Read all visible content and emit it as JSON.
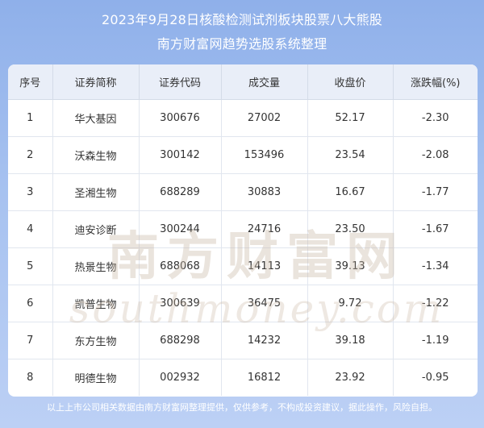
{
  "header": {
    "title_line1": "2023年9月28日核酸检测试剂板块股票八大熊股",
    "title_line2": "南方财富网趋势选股系统整理"
  },
  "table": {
    "columns": [
      "序号",
      "证券简称",
      "证券代码",
      "成交量",
      "收盘价",
      "涨跌幅(%)"
    ],
    "rows": [
      [
        "1",
        "华大基因",
        "300676",
        "27002",
        "52.17",
        "-2.30"
      ],
      [
        "2",
        "沃森生物",
        "300142",
        "153496",
        "23.54",
        "-2.08"
      ],
      [
        "3",
        "圣湘生物",
        "688289",
        "30883",
        "16.67",
        "-1.77"
      ],
      [
        "4",
        "迪安诊断",
        "300244",
        "24716",
        "23.50",
        "-1.67"
      ],
      [
        "5",
        "热景生物",
        "688068",
        "14113",
        "39.13",
        "-1.34"
      ],
      [
        "6",
        "凯普生物",
        "300639",
        "36475",
        "9.72",
        "-1.22"
      ],
      [
        "7",
        "东方生物",
        "688298",
        "14232",
        "39.18",
        "-1.19"
      ],
      [
        "8",
        "明德生物",
        "002932",
        "16812",
        "23.92",
        "-0.95"
      ]
    ]
  },
  "watermark": {
    "text_cn": "南方财富网",
    "text_en": "southmoney.com"
  },
  "footer": {
    "text": "以上上市公司相关数据由南方财富网整理提供，仅供参考，不构成投资建议，据此操作，风险自担。"
  },
  "colors": {
    "background_top": "#8fb0ea",
    "background_bottom": "#bcd0f5",
    "header_row": "#e9eef8",
    "watermark": "#c9b9a5"
  }
}
